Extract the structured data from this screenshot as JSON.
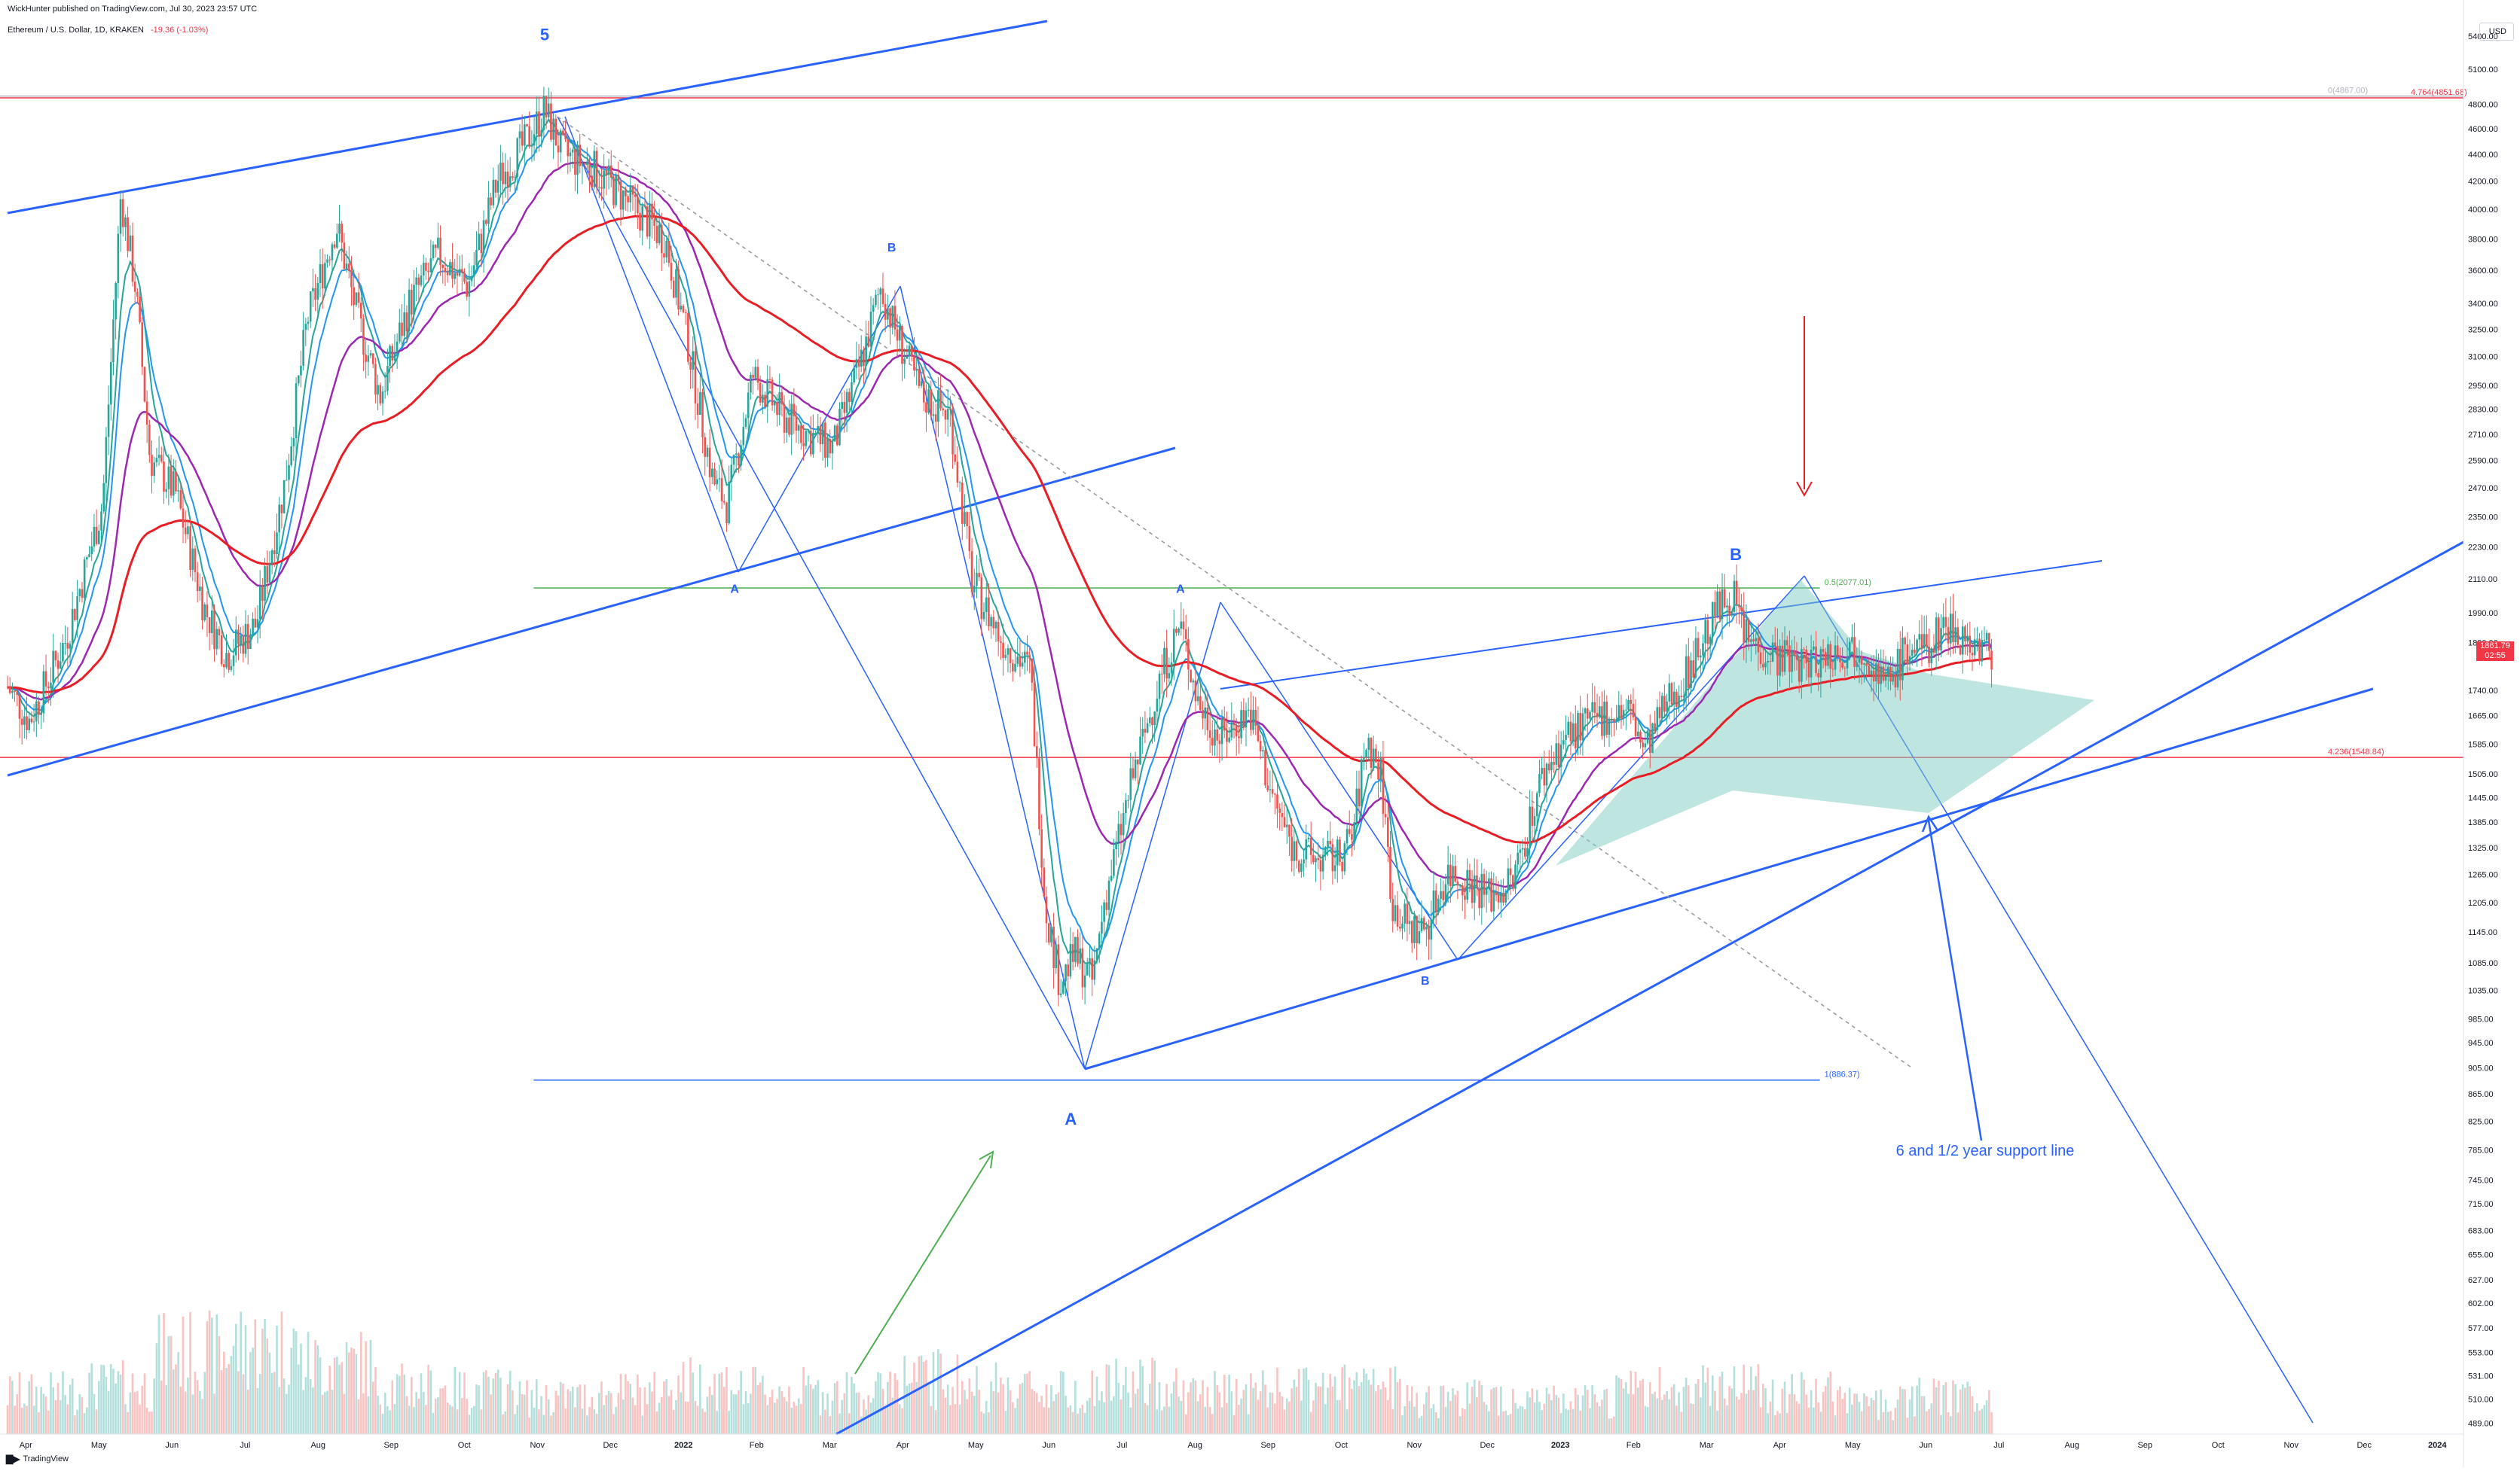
{
  "header": {
    "publisher_line": "WickHunter published on TradingView.com, Jul 30, 2023 23:57 UTC",
    "symbol": "Ethereum / U.S. Dollar, 1D, KRAKEN",
    "change": "-19.36 (-1.03%)"
  },
  "currency": "USD",
  "last_price": {
    "value": "1861.79",
    "countdown": "02:55"
  },
  "brand": "TradingView",
  "colors": {
    "up": "#26a69a",
    "down": "#ef5350",
    "ema_fast": "#26a69a",
    "ema_mid": "#2196f3",
    "ema_slow": "#9c27b0",
    "ma_red": "#e91e24",
    "trend": "#2962ff",
    "fib_green": "#4caf50",
    "fib_red": "#f23645",
    "triangle": "#80cbc4"
  },
  "chart_data": {
    "type": "candlestick",
    "y_axis_scale": "log",
    "ylim": [
      480,
      5600
    ],
    "y_ticks": [
      "5400.00",
      "5100.00",
      "4800.00",
      "4600.00",
      "4400.00",
      "4200.00",
      "4000.00",
      "3800.00",
      "3600.00",
      "3400.00",
      "3250.00",
      "3100.00",
      "2950.00",
      "2830.00",
      "2710.00",
      "2590.00",
      "2470.00",
      "2350.00",
      "2230.00",
      "2110.00",
      "1990.00",
      "1890.00",
      "1740.00",
      "1665.00",
      "1585.00",
      "1505.00",
      "1445.00",
      "1385.00",
      "1325.00",
      "1265.00",
      "1205.00",
      "1145.00",
      "1085.00",
      "1035.00",
      "985.00",
      "945.00",
      "905.00",
      "865.00",
      "825.00",
      "785.00",
      "745.00",
      "715.00",
      "683.00",
      "655.00",
      "627.00",
      "602.00",
      "577.00",
      "553.00",
      "531.00",
      "510.00",
      "489.00"
    ],
    "x_ticks": [
      "Apr",
      "May",
      "Jun",
      "Jul",
      "Aug",
      "Sep",
      "Oct",
      "Nov",
      "Dec",
      "2022",
      "Feb",
      "Mar",
      "Apr",
      "May",
      "Jun",
      "Jul",
      "Aug",
      "Sep",
      "Oct",
      "Nov",
      "Dec",
      "2023",
      "Feb",
      "Mar",
      "Apr",
      "May",
      "Jun",
      "Jul",
      "Aug",
      "Sep",
      "Oct",
      "Nov",
      "Dec",
      "2024"
    ],
    "price_path": [
      [
        0,
        1750
      ],
      [
        0.3,
        1650
      ],
      [
        0.8,
        1900
      ],
      [
        1.3,
        2400
      ],
      [
        1.55,
        4100
      ],
      [
        1.75,
        3500
      ],
      [
        1.95,
        2600
      ],
      [
        2.3,
        2450
      ],
      [
        2.7,
        2000
      ],
      [
        3.0,
        1850
      ],
      [
        3.4,
        1950
      ],
      [
        3.8,
        2500
      ],
      [
        4.1,
        3300
      ],
      [
        4.5,
        3900
      ],
      [
        4.8,
        3300
      ],
      [
        5.1,
        2900
      ],
      [
        5.5,
        3400
      ],
      [
        5.9,
        3700
      ],
      [
        6.3,
        3500
      ],
      [
        6.7,
        4200
      ],
      [
        7.1,
        4500
      ],
      [
        7.35,
        4750
      ],
      [
        7.6,
        4400
      ],
      [
        8.0,
        4300
      ],
      [
        8.4,
        4100
      ],
      [
        8.8,
        3900
      ],
      [
        9.0,
        3800
      ],
      [
        9.3,
        3200
      ],
      [
        9.65,
        2500
      ],
      [
        9.85,
        2400
      ],
      [
        10.2,
        3000
      ],
      [
        10.6,
        2800
      ],
      [
        11.0,
        2700
      ],
      [
        11.3,
        2650
      ],
      [
        11.7,
        3100
      ],
      [
        11.95,
        3500
      ],
      [
        12.1,
        3300
      ],
      [
        12.5,
        2900
      ],
      [
        12.9,
        2800
      ],
      [
        13.2,
        2100
      ],
      [
        13.6,
        1900
      ],
      [
        14.0,
        1800
      ],
      [
        14.2,
        1200
      ],
      [
        14.4,
        1050
      ],
      [
        14.6,
        1100
      ],
      [
        14.85,
        1050
      ],
      [
        15.0,
        1200
      ],
      [
        15.4,
        1500
      ],
      [
        15.8,
        1800
      ],
      [
        16.05,
        1950
      ],
      [
        16.3,
        1700
      ],
      [
        16.6,
        1600
      ],
      [
        17.0,
        1680
      ],
      [
        17.3,
        1450
      ],
      [
        17.6,
        1320
      ],
      [
        17.9,
        1300
      ],
      [
        18.2,
        1300
      ],
      [
        18.4,
        1350
      ],
      [
        18.6,
        1600
      ],
      [
        18.8,
        1500
      ],
      [
        18.95,
        1200
      ],
      [
        19.2,
        1150
      ],
      [
        19.4,
        1150
      ],
      [
        19.7,
        1270
      ],
      [
        20.0,
        1250
      ],
      [
        20.3,
        1220
      ],
      [
        20.6,
        1250
      ],
      [
        21.0,
        1500
      ],
      [
        21.3,
        1600
      ],
      [
        21.6,
        1640
      ],
      [
        21.9,
        1670
      ],
      [
        22.2,
        1680
      ],
      [
        22.4,
        1560
      ],
      [
        22.7,
        1700
      ],
      [
        22.95,
        1780
      ],
      [
        23.4,
        2000
      ],
      [
        23.6,
        2060
      ],
      [
        23.8,
        1900
      ],
      [
        24.2,
        1850
      ],
      [
        24.6,
        1820
      ],
      [
        25.0,
        1860
      ],
      [
        25.4,
        1880
      ],
      [
        25.7,
        1750
      ],
      [
        26.0,
        1870
      ],
      [
        26.3,
        1870
      ],
      [
        26.5,
        1960
      ],
      [
        26.8,
        1900
      ],
      [
        27.15,
        1861.79
      ]
    ],
    "volume_profile": [
      0.28,
      0.33,
      0.55,
      0.6,
      0.48,
      0.32,
      0.3,
      0.25,
      0.28,
      0.35,
      0.3,
      0.28,
      0.38,
      0.32,
      0.3,
      0.34,
      0.28,
      0.3,
      0.32,
      0.25,
      0.26,
      0.22,
      0.3,
      0.35,
      0.28,
      0.22,
      0.25,
      0.28,
      0.24,
      0.2,
      0.22
    ],
    "fib_levels": [
      {
        "label": "0(4867.00)",
        "price": 4867,
        "color": "#b2b5be"
      },
      {
        "label": "4.764(4851.68)",
        "price": 4852,
        "color": "#f23645"
      },
      {
        "label": "0.5(2077.01)",
        "price": 2077,
        "color": "#4caf50"
      },
      {
        "label": "4.236(1548.84)",
        "price": 1549,
        "color": "#f23645"
      },
      {
        "label": "1(886.37)",
        "price": 886,
        "color": "#2962ff"
      }
    ],
    "wave_labels": [
      {
        "text": "5",
        "x": 7.35,
        "price": 5360
      },
      {
        "text": "A",
        "x": 9.95,
        "price": 2060
      },
      {
        "text": "B",
        "x": 12.1,
        "price": 3720
      },
      {
        "text": "A",
        "x": 14.55,
        "price": 820
      },
      {
        "text": "A",
        "x": 16.05,
        "price": 2060
      },
      {
        "text": "B",
        "x": 19.4,
        "price": 1045
      },
      {
        "text": "B",
        "x": 23.65,
        "price": 2180
      }
    ],
    "annotation": "6 and 1/2 year support line"
  }
}
